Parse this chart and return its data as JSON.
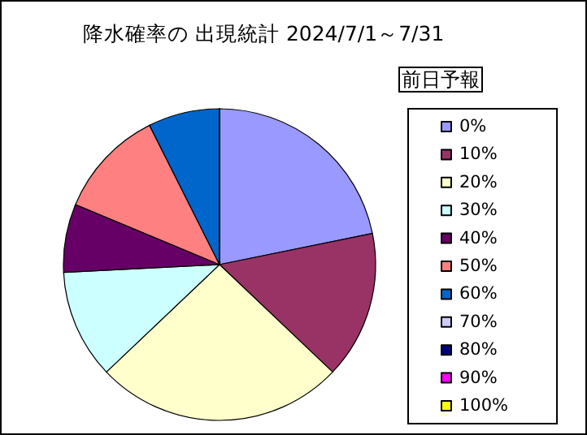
{
  "chart_data": {
    "type": "pie",
    "title": "降水確率の 出現統計 2024/7/1～7/31",
    "legend_title": "前日予報",
    "legend": "right",
    "categories": [
      "0%",
      "10%",
      "20%",
      "30%",
      "40%",
      "50%",
      "60%",
      "70%",
      "80%",
      "90%",
      "100%"
    ],
    "values": [
      21.8,
      15.3,
      25.8,
      11.3,
      7.1,
      11.3,
      7.4,
      0,
      0,
      0,
      0
    ],
    "colors": [
      "#9999ff",
      "#993366",
      "#ffffcc",
      "#ccffff",
      "#660066",
      "#ff8080",
      "#0066cc",
      "#ccccff",
      "#000080",
      "#ff00ff",
      "#ffff00"
    ]
  }
}
